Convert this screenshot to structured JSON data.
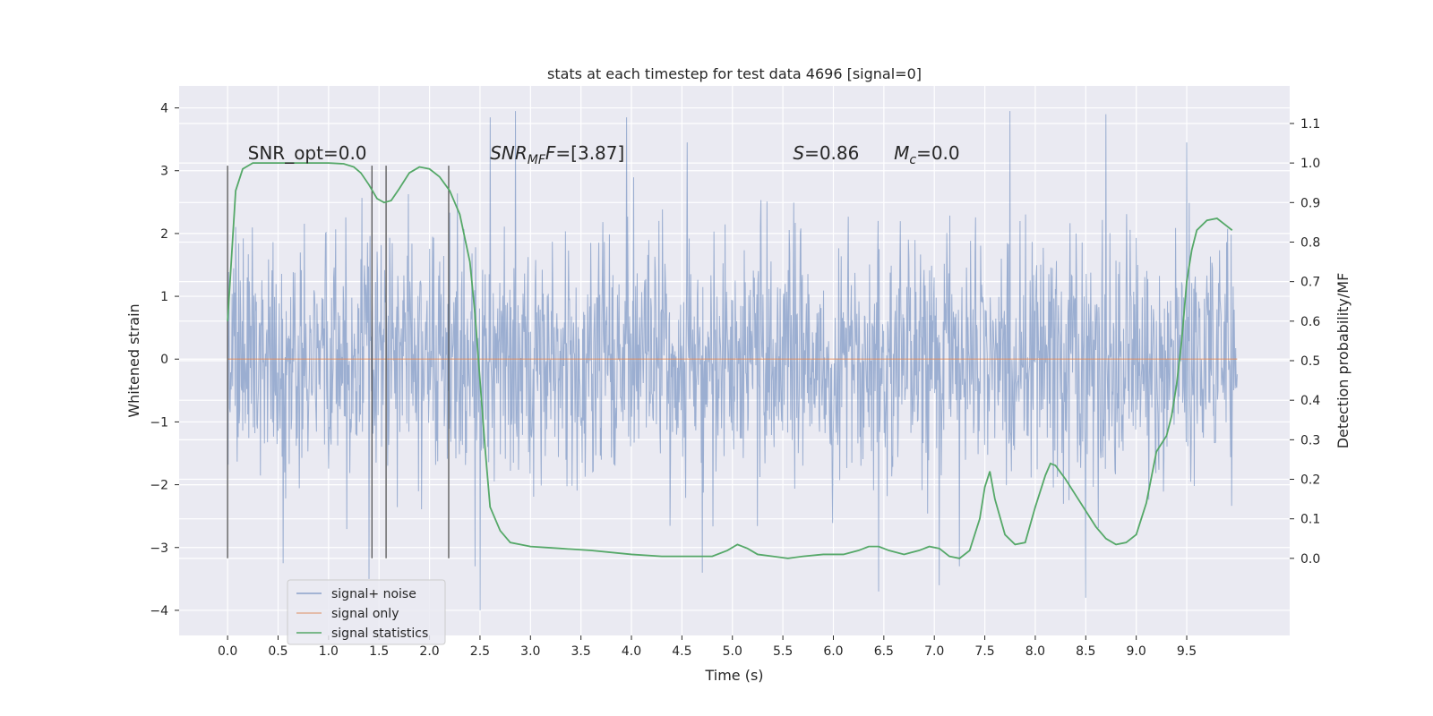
{
  "chart_data": {
    "type": "line",
    "title": "stats at each timestep for test data 4696 [signal=0]",
    "xlabel": "Time (s)",
    "ylabel": "Whitened strain",
    "y2label": "Detection probability/MF",
    "xlim": [
      -0.48,
      10.52
    ],
    "ylim": [
      -4.4,
      4.35
    ],
    "y2lim": [
      -0.195,
      1.195
    ],
    "xticks": [
      0.0,
      0.5,
      1.0,
      1.5,
      2.0,
      2.5,
      3.0,
      3.5,
      4.0,
      4.5,
      5.0,
      5.5,
      6.0,
      6.5,
      7.0,
      7.5,
      8.0,
      8.5,
      9.0,
      9.5
    ],
    "xtick_labels": [
      "0.0",
      "0.5",
      "1.0",
      "1.5",
      "2.0",
      "2.5",
      "3.0",
      "3.5",
      "4.0",
      "4.5",
      "5.0",
      "5.5",
      "6.0",
      "6.5",
      "7.0",
      "7.5",
      "8.0",
      "8.5",
      "9.0",
      "9.5"
    ],
    "yticks": [
      4,
      3,
      2,
      1,
      0,
      -1,
      -2,
      -3,
      -4
    ],
    "ytick_labels": [
      "4",
      "3",
      "2",
      "1",
      "0",
      "−1",
      "−2",
      "−3",
      "−4"
    ],
    "y2ticks": [
      1.1,
      1.0,
      0.9,
      0.8,
      0.7,
      0.6,
      0.5,
      0.4,
      0.3,
      0.2,
      0.1,
      0.0
    ],
    "y2tick_labels": [
      "1.1",
      "1.0",
      "0.9",
      "0.8",
      "0.7",
      "0.6",
      "0.5",
      "0.4",
      "0.3",
      "0.2",
      "0.1",
      "0.0"
    ],
    "grid": true,
    "legend_position": "lower-left",
    "series": [
      {
        "name": "signal+ noise",
        "color": "#4c72b0",
        "note": "whitened noise, roughly Gaussian with unit variance, sampled from 0.0 s to 10.0 s",
        "x_range": [
          0.0,
          10.0
        ],
        "peaks": [
          [
            2.6,
            3.85
          ],
          [
            2.85,
            3.95
          ],
          [
            3.95,
            3.85
          ],
          [
            4.55,
            3.45
          ],
          [
            7.75,
            3.95
          ],
          [
            8.7,
            3.9
          ],
          [
            9.5,
            3.45
          ],
          [
            2.45,
            -3.3
          ],
          [
            2.5,
            -4.0
          ],
          [
            4.7,
            -3.4
          ],
          [
            6.45,
            -3.7
          ],
          [
            7.05,
            -3.6
          ],
          [
            7.25,
            -3.3
          ],
          [
            8.5,
            -3.8
          ],
          [
            1.4,
            -3.5
          ],
          [
            0.55,
            -3.25
          ]
        ]
      },
      {
        "name": "signal only",
        "color": "#dd8452",
        "x": [
          0.0,
          10.0
        ],
        "y": [
          0.0,
          0.0
        ]
      },
      {
        "name": "signal statistics",
        "color": "#55a868",
        "axis": "right",
        "x": [
          0.0,
          0.08,
          0.15,
          0.25,
          0.4,
          0.6,
          0.8,
          1.0,
          1.15,
          1.25,
          1.32,
          1.4,
          1.48,
          1.55,
          1.62,
          1.7,
          1.8,
          1.9,
          2.0,
          2.1,
          2.2,
          2.3,
          2.4,
          2.45,
          2.5,
          2.55,
          2.6,
          2.7,
          2.8,
          3.0,
          3.3,
          3.6,
          4.0,
          4.3,
          4.6,
          4.8,
          4.95,
          5.05,
          5.15,
          5.25,
          5.4,
          5.55,
          5.7,
          5.9,
          6.1,
          6.25,
          6.35,
          6.45,
          6.55,
          6.7,
          6.85,
          6.95,
          7.05,
          7.15,
          7.25,
          7.35,
          7.45,
          7.5,
          7.55,
          7.6,
          7.7,
          7.8,
          7.9,
          8.0,
          8.1,
          8.15,
          8.2,
          8.3,
          8.4,
          8.5,
          8.6,
          8.7,
          8.8,
          8.9,
          9.0,
          9.05,
          9.1,
          9.2,
          9.3,
          9.35,
          9.4,
          9.45,
          9.5,
          9.55,
          9.6,
          9.7,
          9.8,
          9.9,
          9.95
        ],
        "y": [
          0.6,
          0.93,
          0.985,
          1.0,
          1.0,
          1.0,
          1.0,
          1.0,
          0.998,
          0.99,
          0.975,
          0.945,
          0.91,
          0.9,
          0.905,
          0.935,
          0.975,
          0.99,
          0.985,
          0.965,
          0.93,
          0.87,
          0.75,
          0.62,
          0.45,
          0.28,
          0.13,
          0.07,
          0.04,
          0.03,
          0.025,
          0.02,
          0.01,
          0.005,
          0.005,
          0.005,
          0.02,
          0.035,
          0.025,
          0.01,
          0.005,
          0.0,
          0.005,
          0.01,
          0.01,
          0.02,
          0.03,
          0.03,
          0.02,
          0.01,
          0.02,
          0.03,
          0.025,
          0.005,
          0.0,
          0.02,
          0.1,
          0.18,
          0.22,
          0.15,
          0.06,
          0.035,
          0.04,
          0.13,
          0.21,
          0.24,
          0.235,
          0.2,
          0.16,
          0.12,
          0.08,
          0.05,
          0.035,
          0.04,
          0.06,
          0.1,
          0.14,
          0.27,
          0.31,
          0.36,
          0.44,
          0.55,
          0.7,
          0.78,
          0.83,
          0.855,
          0.86,
          0.84,
          0.83
        ]
      }
    ],
    "vlines": {
      "color": "#555555",
      "x": [
        0.0,
        1.43,
        1.57,
        2.19
      ],
      "ymin": -3.17,
      "ymax": 3.08
    },
    "annotations": [
      {
        "text": "SNR_opt=0.0",
        "x": 0.2,
        "y": 3.18
      },
      {
        "text": "=[3.87]",
        "x": 2.6,
        "y": 3.18,
        "italic_prefix": "SNR",
        "subscript": "MF",
        "italic_suffix": "F"
      },
      {
        "text": "=0.86",
        "x": 5.6,
        "y": 3.18,
        "italic_prefix": "S"
      },
      {
        "text": "=0.0",
        "x": 6.6,
        "y": 3.18,
        "italic_prefix": "M",
        "subscript": "c"
      }
    ]
  },
  "legend": {
    "items": [
      {
        "label": "signal+ noise",
        "color": "#4c72b0"
      },
      {
        "label": "signal only",
        "color": "#dd8452"
      },
      {
        "label": "signal statistics",
        "color": "#55a868"
      }
    ]
  }
}
